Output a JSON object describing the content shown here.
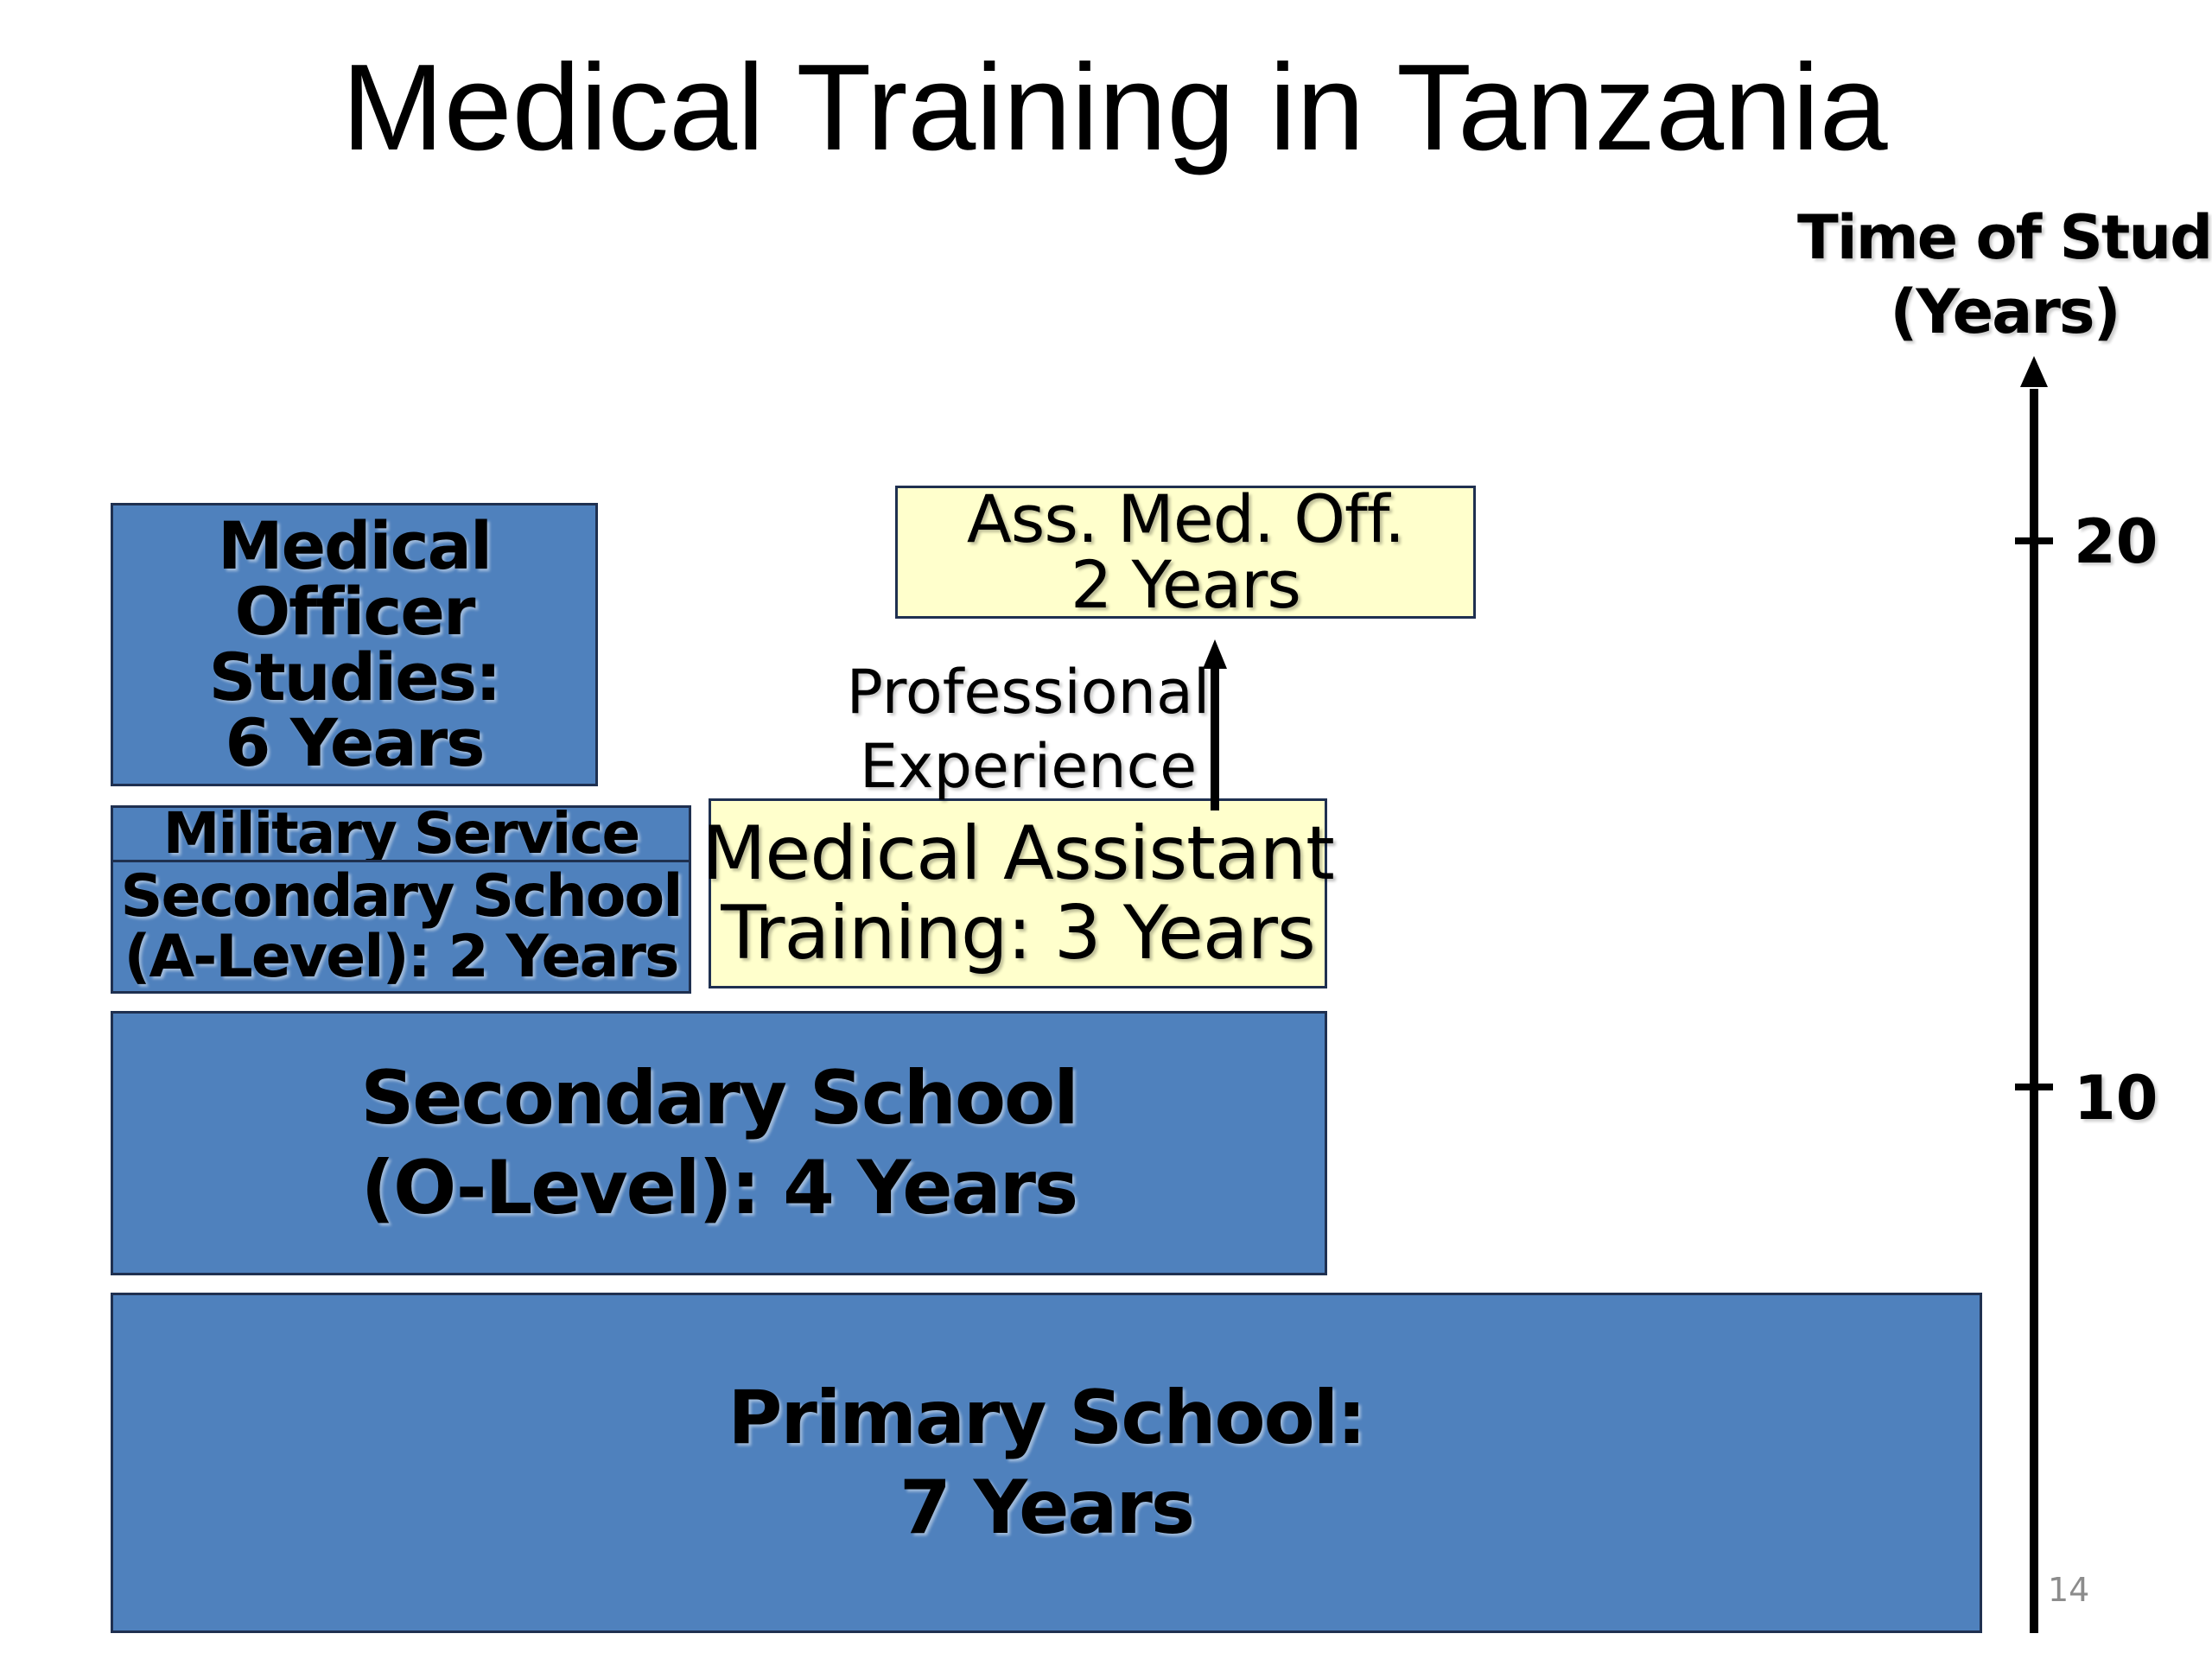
{
  "title": "Medical Training in Tanzania",
  "axis": {
    "label_line1": "Time of Study",
    "label_line2": "(Years)",
    "ticks": [
      "20",
      "10"
    ]
  },
  "boxes": {
    "medical_officer": {
      "line1": "Medical",
      "line2": "Officer",
      "line3": "Studies:",
      "line4": "6 Years"
    },
    "military_service": {
      "label": "Military Service"
    },
    "a_level": {
      "line1": "Secondary School",
      "line2": "(A-Level): 2 Years"
    },
    "o_level": {
      "line1": "Secondary School",
      "line2": "(O-Level): 4 Years"
    },
    "primary": {
      "line1": "Primary School:",
      "line2": "7 Years"
    },
    "medical_assistant": {
      "line1": "Medical Assistant",
      "line2": "Training: 3 Years"
    },
    "ass_med_off": {
      "line1": "Ass. Med. Off.",
      "line2": "2 Years"
    }
  },
  "arrow_label": {
    "line1": "Professional",
    "line2": "Experience"
  },
  "page_number": "14",
  "colors": {
    "blue_box": "#4f81bd",
    "yellow_box": "#ffffcc",
    "border": "#1f3050"
  }
}
